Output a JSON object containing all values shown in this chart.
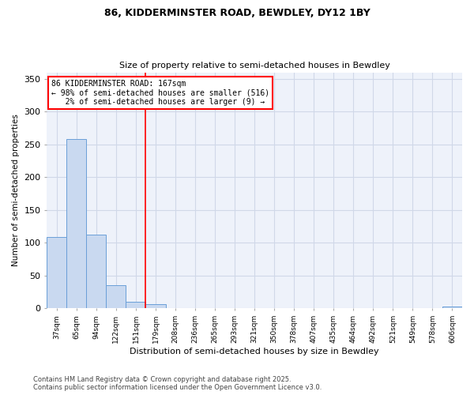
{
  "title1": "86, KIDDERMINSTER ROAD, BEWDLEY, DY12 1BY",
  "title2": "Size of property relative to semi-detached houses in Bewdley",
  "xlabel": "Distribution of semi-detached houses by size in Bewdley",
  "ylabel": "Number of semi-detached properties",
  "footer": "Contains HM Land Registry data © Crown copyright and database right 2025.\nContains public sector information licensed under the Open Government Licence v3.0.",
  "bins": [
    "37sqm",
    "65sqm",
    "94sqm",
    "122sqm",
    "151sqm",
    "179sqm",
    "208sqm",
    "236sqm",
    "265sqm",
    "293sqm",
    "321sqm",
    "350sqm",
    "378sqm",
    "407sqm",
    "435sqm",
    "464sqm",
    "492sqm",
    "521sqm",
    "549sqm",
    "578sqm",
    "606sqm"
  ],
  "values": [
    109,
    258,
    112,
    35,
    10,
    6,
    0,
    0,
    0,
    0,
    0,
    0,
    0,
    0,
    0,
    0,
    0,
    0,
    0,
    0,
    3
  ],
  "bar_color": "#c9d9f0",
  "bar_edge_color": "#6a9fd8",
  "grid_color": "#d0d8e8",
  "background_color": "#eef2fa",
  "vline_x_index": 4.5,
  "vline_color": "red",
  "annotation_text": "86 KIDDERMINSTER ROAD: 167sqm\n← 98% of semi-detached houses are smaller (516)\n   2% of semi-detached houses are larger (9) →",
  "annotation_box_color": "white",
  "annotation_box_edge_color": "red",
  "ylim": [
    0,
    360
  ],
  "yticks": [
    0,
    50,
    100,
    150,
    200,
    250,
    300,
    350
  ]
}
